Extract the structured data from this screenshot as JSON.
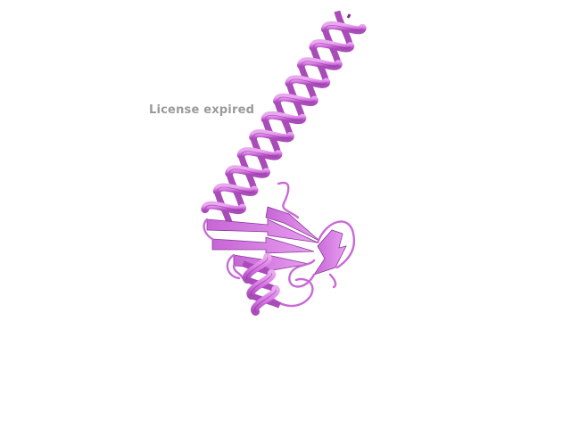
{
  "watermark": {
    "text": "License expired"
  },
  "structure": {
    "representation": "cartoon",
    "color": "#d977e6",
    "color_dark": "#a94bb8",
    "color_light": "#eaa8f0",
    "color_shadow": "#7d2f8c",
    "background": "#ffffff"
  }
}
